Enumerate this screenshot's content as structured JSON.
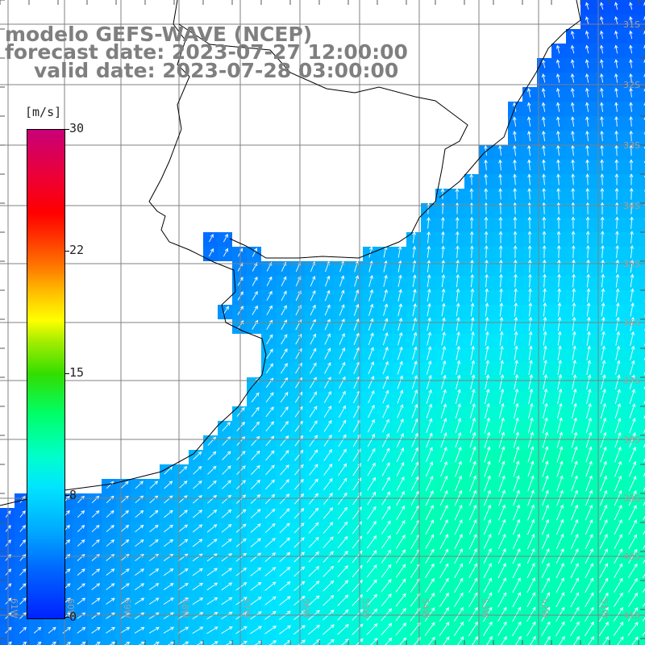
{
  "title": {
    "line1": "modelo GEFS-WAVE (NCEP)",
    "line2": "forecast date: 2023-07-27 12:00:00",
    "line3": "valid date: 2023-07-28 03:00:00"
  },
  "colorbar": {
    "units": "[m/s]",
    "tick_labels": [
      "30",
      "22",
      "15",
      "8",
      "0"
    ],
    "tick_values": [
      30,
      22,
      15,
      8,
      0
    ],
    "range": [
      0,
      30
    ]
  },
  "grid": {
    "longitude_labels": [
      "61W",
      "60W",
      "59W",
      "58W",
      "57W",
      "56W",
      "55W",
      "54W",
      "53W",
      "52W",
      "51W"
    ],
    "latitude_labels": [
      "31S",
      "32S",
      "33S",
      "34S",
      "35S",
      "36S",
      "37S",
      "38S",
      "39S",
      "40S",
      "41S"
    ]
  },
  "colors": {
    "land": "#ffffff",
    "coastline": "#000000",
    "gridline": "#808080",
    "arrow": "#ffffff",
    "low_speed": "#0033ff",
    "mid_speed": "#00ddff",
    "title_text": "#7f7f7f"
  }
}
